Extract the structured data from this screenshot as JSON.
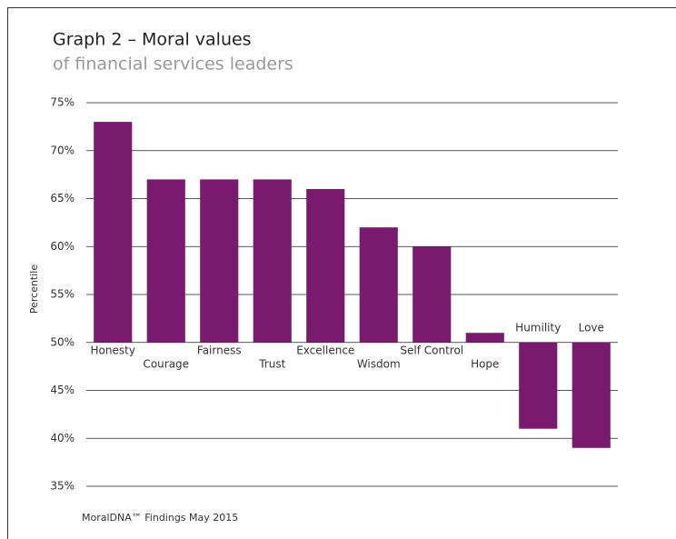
{
  "chart_data": {
    "type": "bar",
    "title": "Graph 2 – Moral values",
    "subtitle": "of financial services leaders",
    "y_label": "Percentile",
    "footer": "MoralDNA™ Findings May 2015",
    "categories": [
      "Honesty",
      "Courage",
      "Fairness",
      "Trust",
      "Excellence",
      "Wisdom",
      "Self Control",
      "Hope",
      "Humility",
      "Love"
    ],
    "values": [
      73,
      67,
      67,
      67,
      66,
      62,
      60,
      51,
      41,
      39
    ],
    "baseline": 50,
    "color": "#7a1a6e",
    "ylim": [
      35,
      75
    ],
    "yticks": [
      {
        "value": 35,
        "label": "35%"
      },
      {
        "value": 40,
        "label": "40%"
      },
      {
        "value": 45,
        "label": "45%"
      },
      {
        "value": 50,
        "label": "50%"
      },
      {
        "value": 55,
        "label": "55%"
      },
      {
        "value": 60,
        "label": "60%"
      },
      {
        "value": 65,
        "label": "65%"
      },
      {
        "value": 70,
        "label": "70%"
      },
      {
        "value": 75,
        "label": "75%"
      }
    ],
    "grid": true
  }
}
